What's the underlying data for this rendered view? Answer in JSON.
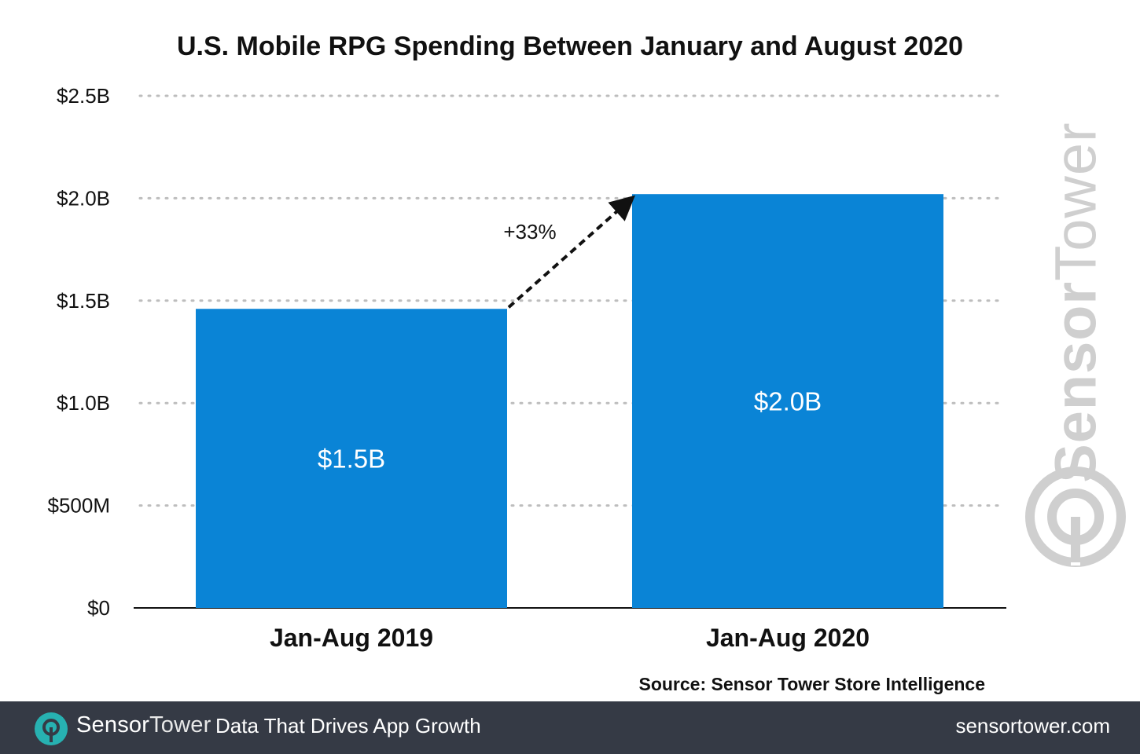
{
  "title": "U.S. Mobile RPG Spending Between January and August 2020",
  "source": "Source: Sensor Tower Store Intelligence",
  "watermark": {
    "part1": "Sensor",
    "part2": "Tower",
    "color": "#cfcfcf",
    "icon": "sensor-tower-logo-icon"
  },
  "footer": {
    "brand_part1": "Sensor",
    "brand_part2": "Tower",
    "tagline": "Data That Drives App Growth",
    "url": "sensortower.com",
    "background": "#353a45",
    "logo_color": "#27b1b1",
    "icon": "sensor-tower-logo-icon"
  },
  "chart_data": {
    "type": "bar",
    "title": "U.S. Mobile RPG Spending Between January and August 2020",
    "categories": [
      "Jan-Aug 2019",
      "Jan-Aug 2020"
    ],
    "values": [
      1.46,
      2.02
    ],
    "value_labels": [
      "$1.5B",
      "$2.0B"
    ],
    "bar_color": "#0a84d6",
    "ylim": [
      0,
      2.5
    ],
    "yticks": [
      0,
      0.5,
      1.0,
      1.5,
      2.0,
      2.5
    ],
    "ytick_labels": [
      "$0",
      "$500M",
      "$1.0B",
      "$1.5B",
      "$2.0B",
      "$2.5B"
    ],
    "xlabel": "",
    "ylabel": "",
    "grid": true,
    "legend": "none",
    "annotation": {
      "text": "+33%",
      "from_category": "Jan-Aug 2019",
      "to_category": "Jan-Aug 2020",
      "style": "dashed-arrow"
    }
  }
}
